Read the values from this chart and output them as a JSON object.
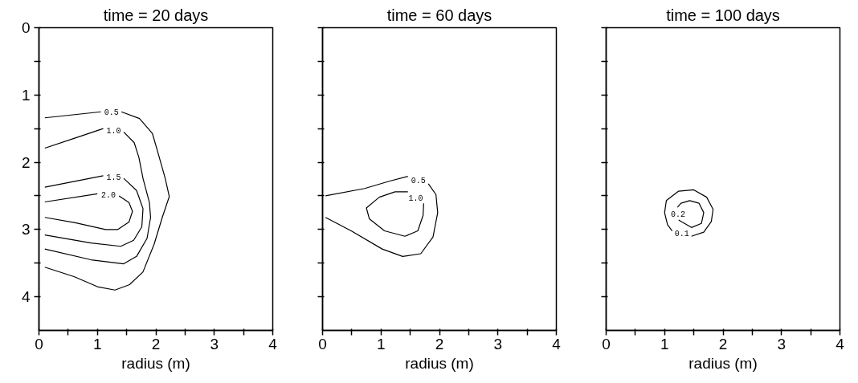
{
  "chart_data": [
    {
      "type": "line",
      "title": "time = 20 days",
      "xlabel": "radius (m)",
      "xlim": [
        0,
        4
      ],
      "ylim": [
        4.5,
        0
      ],
      "xticks": [
        0,
        {
          "value": 0.5,
          "label": null
        },
        1,
        {
          "value": 1.5,
          "label": null
        },
        2,
        {
          "value": 2.5,
          "label": null
        },
        3,
        {
          "value": 3.5,
          "label": null
        },
        4
      ],
      "yticks": [
        0,
        {
          "value": 0.5,
          "label": null
        },
        1,
        {
          "value": 1.5,
          "label": null
        },
        2,
        {
          "value": 2.5,
          "label": null
        },
        3,
        {
          "value": 3.5,
          "label": null
        },
        4
      ],
      "grid": false,
      "line_style": "solid",
      "marker": "none",
      "series": [
        {
          "name": "0.5",
          "color": "#000000",
          "x": [
            0.1,
            1.06,
            1.24,
            1.41,
            1.72,
            1.94,
            2.03,
            2.16,
            2.23,
            2.11,
            1.97,
            1.78,
            1.55,
            1.3,
            1.0,
            0.6,
            0.1
          ],
          "values": [
            1.34,
            1.25,
            null,
            1.25,
            1.35,
            1.57,
            1.84,
            2.24,
            2.51,
            2.82,
            3.22,
            3.63,
            3.82,
            3.9,
            3.85,
            3.7,
            3.56
          ]
        },
        {
          "name": "1.0",
          "color": "#000000",
          "x": [
            0.1,
            0.62,
            1.1,
            1.28,
            1.45,
            1.63,
            1.71,
            1.78,
            1.89,
            1.91,
            1.85,
            1.67,
            1.45,
            0.89,
            0.1
          ],
          "values": [
            1.79,
            1.64,
            1.5,
            null,
            1.55,
            1.71,
            1.93,
            2.24,
            2.6,
            2.82,
            3.13,
            3.4,
            3.51,
            3.45,
            3.29
          ]
        },
        {
          "name": "1.5",
          "color": "#000000",
          "x": [
            0.1,
            1.1,
            1.28,
            1.45,
            1.67,
            1.78,
            1.76,
            1.62,
            1.4,
            0.89,
            0.1
          ],
          "values": [
            2.37,
            2.2,
            null,
            2.24,
            2.42,
            2.69,
            2.96,
            3.16,
            3.25,
            3.2,
            3.08
          ]
        },
        {
          "name": "2.0",
          "color": "#000000",
          "x": [
            0.1,
            1.0,
            1.19,
            1.37,
            1.54,
            1.6,
            1.54,
            1.35,
            1.14,
            0.62,
            0.1
          ],
          "values": [
            2.59,
            2.47,
            null,
            2.5,
            2.6,
            2.73,
            2.89,
            3.0,
            3.0,
            2.9,
            2.82
          ]
        }
      ]
    },
    {
      "type": "line",
      "title": "time = 60 days",
      "xlabel": "radius (m)",
      "xlim": [
        0,
        4
      ],
      "ylim": [
        4.5,
        0
      ],
      "tick_labels": "x",
      "xticks": [
        0,
        {
          "value": 0.5,
          "label": null
        },
        1,
        {
          "value": 1.5,
          "label": null
        },
        2,
        {
          "value": 2.5,
          "label": null
        },
        3,
        {
          "value": 3.5,
          "label": null
        },
        4
      ],
      "yticks": [
        0,
        {
          "value": 0.5,
          "label": null
        },
        1,
        {
          "value": 1.5,
          "label": null
        },
        2,
        {
          "value": 2.5,
          "label": null
        },
        3,
        {
          "value": 3.5,
          "label": null
        },
        4
      ],
      "grid": false,
      "line_style": "solid",
      "marker": "none",
      "series": [
        {
          "name": "0.5",
          "color": "#000000",
          "x": [
            0.05,
            0.72,
            1.15,
            1.46,
            1.64,
            1.81,
            1.94,
            1.97,
            1.89,
            1.68,
            1.37,
            1.02,
            0.49,
            0.05
          ],
          "values": [
            2.5,
            2.39,
            2.28,
            2.21,
            null,
            2.32,
            2.48,
            2.75,
            3.11,
            3.36,
            3.4,
            3.29,
            3.02,
            2.82
          ]
        },
        {
          "name": "1.0",
          "color": "#000000",
          "x": [
            1.46,
            1.24,
            0.97,
            0.75,
            0.8,
            1.06,
            1.41,
            1.63,
            1.72,
            1.73
          ],
          "values": [
            2.44,
            2.44,
            2.52,
            2.68,
            2.84,
            3.02,
            3.1,
            3.02,
            2.79,
            2.61
          ]
        }
      ]
    },
    {
      "type": "line",
      "title": "time = 100 days",
      "xlabel": "radius (m)",
      "xlim": [
        0,
        4
      ],
      "ylim": [
        4.5,
        0
      ],
      "tick_labels": "x",
      "xticks": [
        0,
        {
          "value": 0.5,
          "label": null
        },
        1,
        {
          "value": 1.5,
          "label": null
        },
        2,
        {
          "value": 2.5,
          "label": null
        },
        3,
        {
          "value": 3.5,
          "label": null
        },
        4
      ],
      "yticks": [
        0,
        {
          "value": 0.5,
          "label": null
        },
        1,
        {
          "value": 1.5,
          "label": null
        },
        2,
        {
          "value": 2.5,
          "label": null
        },
        3,
        {
          "value": 3.5,
          "label": null
        },
        4
      ],
      "grid": false,
      "line_style": "solid",
      "marker": "none",
      "series": [
        {
          "name": "0.1",
          "color": "#000000",
          "x": [
            1.46,
            1.67,
            1.8,
            1.83,
            1.72,
            1.5,
            1.24,
            1.03,
            1.0,
            1.05,
            1.13
          ],
          "values": [
            3.1,
            3.04,
            2.88,
            2.7,
            2.52,
            2.41,
            2.43,
            2.57,
            2.75,
            2.93,
            3.02
          ]
        },
        {
          "name": "0.2",
          "color": "#000000",
          "x": [
            1.24,
            1.46,
            1.63,
            1.67,
            1.59,
            1.43,
            1.28,
            1.22
          ],
          "values": [
            2.86,
            2.97,
            2.91,
            2.75,
            2.61,
            2.57,
            2.61,
            2.67
          ]
        }
      ]
    }
  ]
}
